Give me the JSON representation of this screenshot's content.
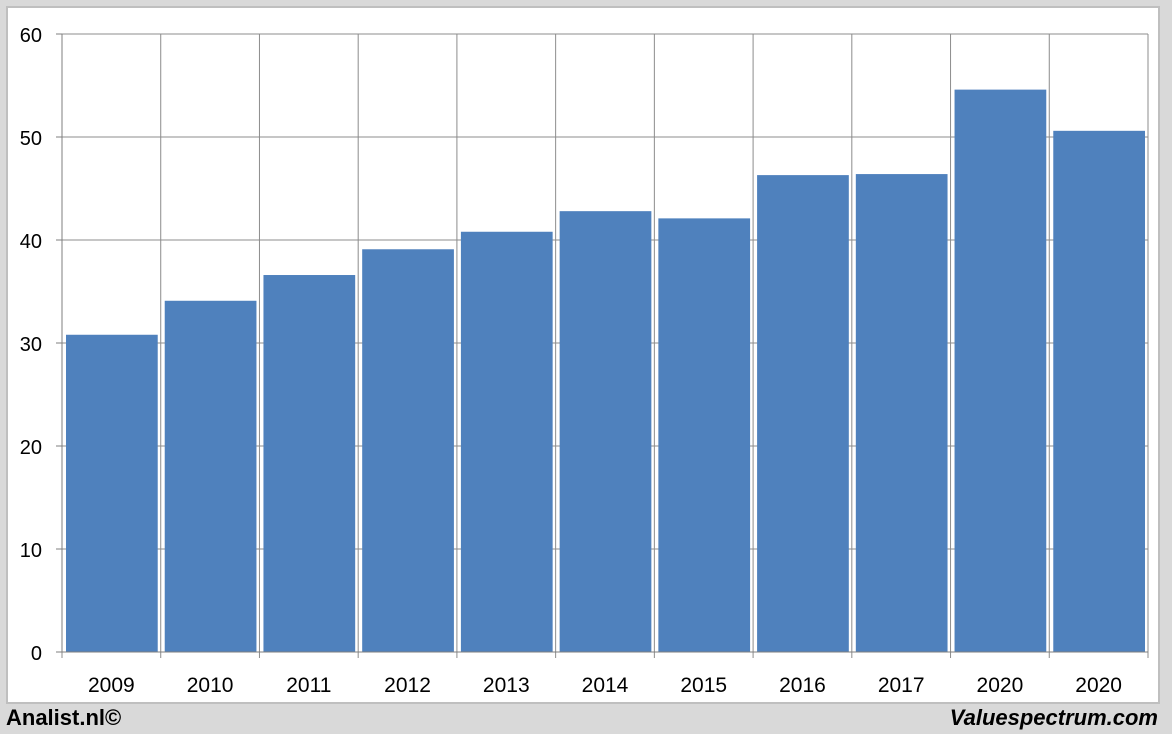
{
  "chart_data": {
    "type": "bar",
    "title": "",
    "xlabel": "",
    "ylabel": "",
    "categories": [
      "2009",
      "2010",
      "2011",
      "2012",
      "2013",
      "2014",
      "2015",
      "2016",
      "2017",
      "2020",
      "2020"
    ],
    "values": [
      30.8,
      34.1,
      36.6,
      39.1,
      40.8,
      42.8,
      42.1,
      46.3,
      46.4,
      54.6,
      50.6
    ],
    "ylim": [
      0,
      60
    ],
    "yticks": [
      0,
      10,
      20,
      30,
      40,
      50,
      60
    ],
    "grid": true,
    "legend": "none",
    "colors": {
      "bar": "#4f81bd",
      "grid": "#8c8c8c",
      "background": "#ffffff"
    }
  },
  "footer": {
    "left": "Analist.nl©",
    "right": "Valuespectrum.com"
  }
}
